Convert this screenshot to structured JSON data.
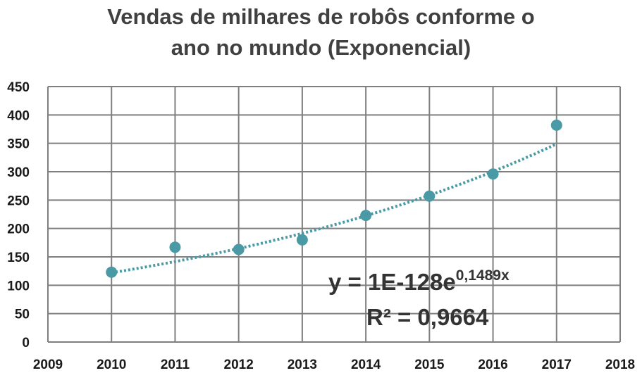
{
  "chart_data": {
    "type": "scatter",
    "title_line1": "Vendas de milhares de robôs conforme o",
    "title_line2": "ano no mundo (Exponencial)",
    "xlabel": "",
    "ylabel": "",
    "xlim": [
      2009,
      2018
    ],
    "ylim": [
      0,
      450
    ],
    "x_ticks": [
      2009,
      2010,
      2011,
      2012,
      2013,
      2014,
      2015,
      2016,
      2017,
      2018
    ],
    "y_ticks": [
      0,
      50,
      100,
      150,
      200,
      250,
      300,
      350,
      400,
      450
    ],
    "grid": true,
    "points": [
      {
        "x": 2010,
        "y": 123
      },
      {
        "x": 2011,
        "y": 167
      },
      {
        "x": 2012,
        "y": 163
      },
      {
        "x": 2013,
        "y": 180
      },
      {
        "x": 2014,
        "y": 223
      },
      {
        "x": 2015,
        "y": 257
      },
      {
        "x": 2016,
        "y": 296
      },
      {
        "x": 2017,
        "y": 382
      }
    ],
    "trendline": {
      "type": "exponential",
      "from_x": 2010,
      "to_x": 2017,
      "y_start": 122,
      "y_end": 349
    },
    "equation": {
      "base": "y = 1E-128e",
      "exponent": "0,1489x",
      "r2": "R² = 0,9664"
    },
    "colors": {
      "marker": "#4a9aa5",
      "trendline": "#4a9aa5",
      "grid": "#7f7f7f"
    }
  }
}
